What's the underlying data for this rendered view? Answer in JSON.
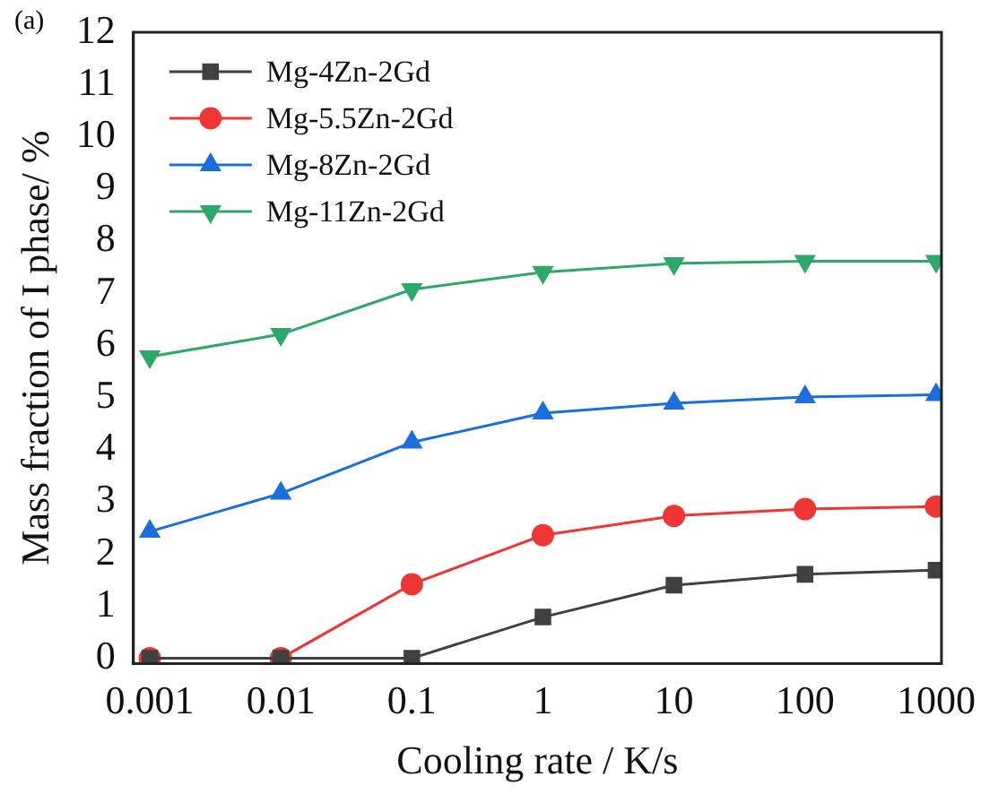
{
  "chart_data": {
    "type": "line",
    "xlabel": "Cooling rate / K/s",
    "ylabel": "Mass fraction of I phase/ %",
    "annotations": [
      "(a)"
    ],
    "x": [
      0.001,
      0.01,
      0.1,
      1,
      10,
      100,
      1000
    ],
    "log": "x",
    "xlim": [
      0.00075,
      1100
    ],
    "xticks": [
      0.001,
      0.01,
      0.1,
      1,
      10,
      100,
      1000
    ],
    "ylim": [
      -0.1,
      12
    ],
    "yticks": [
      0,
      1,
      2,
      3,
      4,
      5,
      6,
      7,
      8,
      9,
      10,
      11,
      12
    ],
    "grid": false,
    "legend": "top left",
    "line_style": "solid",
    "series": [
      {
        "name": "Mg-4Zn-2Gd",
        "color": "#404040",
        "marker": "square",
        "values": [
          0,
          0,
          0,
          0.79,
          1.4,
          1.61,
          1.69
        ]
      },
      {
        "name": "Mg-5.5Zn-2Gd",
        "color": "#f03535",
        "marker": "circle",
        "values": [
          0,
          0,
          1.42,
          2.36,
          2.73,
          2.86,
          2.91
        ]
      },
      {
        "name": "Mg-8Zn-2Gd",
        "color": "#1a6fdc",
        "marker": "triangle",
        "values": [
          2.43,
          3.16,
          4.14,
          4.7,
          4.89,
          5.01,
          5.05
        ]
      },
      {
        "name": "Mg-11Zn-2Gd",
        "color": "#2ea86a",
        "marker": "triangle-down",
        "values": [
          5.78,
          6.21,
          7.07,
          7.4,
          7.57,
          7.61,
          7.61
        ]
      }
    ]
  }
}
